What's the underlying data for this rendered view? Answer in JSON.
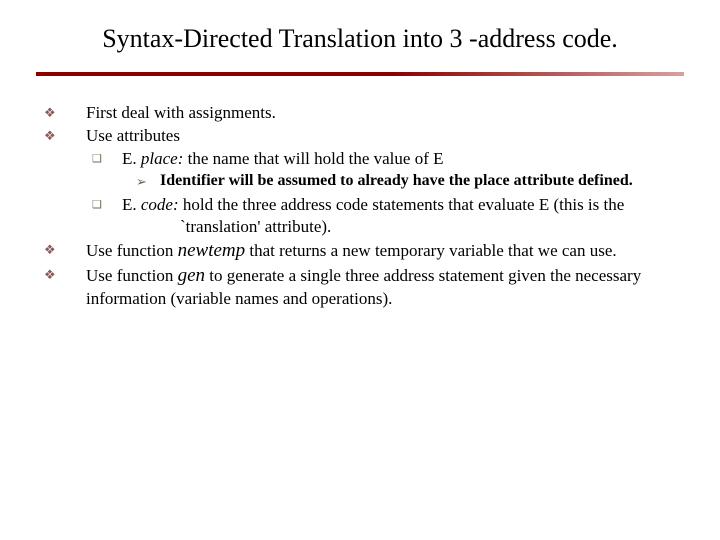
{
  "colors": {
    "rule_start": "#8a0000",
    "rule_end": "#d9a0a0",
    "bullet_level1": "#8a5a5a",
    "bullet_level2": "#6a6a50",
    "bullet_level3": "#5a6a50",
    "text": "#000000",
    "background": "#ffffff"
  },
  "bullets": {
    "level1": "❖",
    "level2": "❑",
    "level3": "➢"
  },
  "title": "Syntax-Directed Translation into 3 -address code.",
  "b1": "First deal with assignments.",
  "b2": "Use attributes",
  "b2a_pre": "E. ",
  "b2a_attr": "place:",
  "b2a_post": " the name that will hold the value of E",
  "b2a1": "Identifier will be assumed to already have the place attribute defined.",
  "b2b_pre": "E. ",
  "b2b_attr": "code:",
  "b2b_post": " hold the three address code statements that evaluate E (this is the `translation' attribute).",
  "b3_pre": "Use function ",
  "b3_func": "newtemp",
  "b3_post": " that returns a new temporary variable that we can use.",
  "b4_pre": "Use function ",
  "b4_func": "gen",
  "b4_post": " to generate a single three address statement given the necessary information (variable names and operations)."
}
